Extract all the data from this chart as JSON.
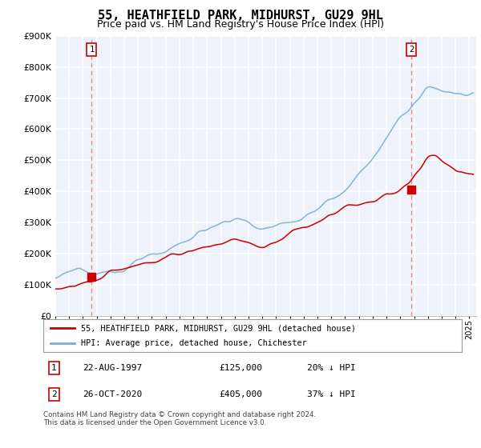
{
  "title": "55, HEATHFIELD PARK, MIDHURST, GU29 9HL",
  "subtitle": "Price paid vs. HM Land Registry's House Price Index (HPI)",
  "ylim": [
    0,
    900000
  ],
  "xlim_start": 1995.0,
  "xlim_end": 2025.5,
  "purchase1_date": 1997.64,
  "purchase1_price": 125000,
  "purchase2_date": 2020.82,
  "purchase2_price": 405000,
  "legend_line1": "55, HEATHFIELD PARK, MIDHURST, GU29 9HL (detached house)",
  "legend_line2": "HPI: Average price, detached house, Chichester",
  "table_row1": [
    "1",
    "22-AUG-1997",
    "£125,000",
    "20% ↓ HPI"
  ],
  "table_row2": [
    "2",
    "26-OCT-2020",
    "£405,000",
    "37% ↓ HPI"
  ],
  "footer": "Contains HM Land Registry data © Crown copyright and database right 2024.\nThis data is licensed under the Open Government Licence v3.0.",
  "line_color_red": "#CC0000",
  "line_color_blue": "#7AADD4",
  "dashed_color": "#EE8888",
  "plot_bg": "#EEF2FA",
  "grid_color": "#FFFFFF",
  "box_color": "#CC0000",
  "title_fontsize": 11,
  "subtitle_fontsize": 9
}
